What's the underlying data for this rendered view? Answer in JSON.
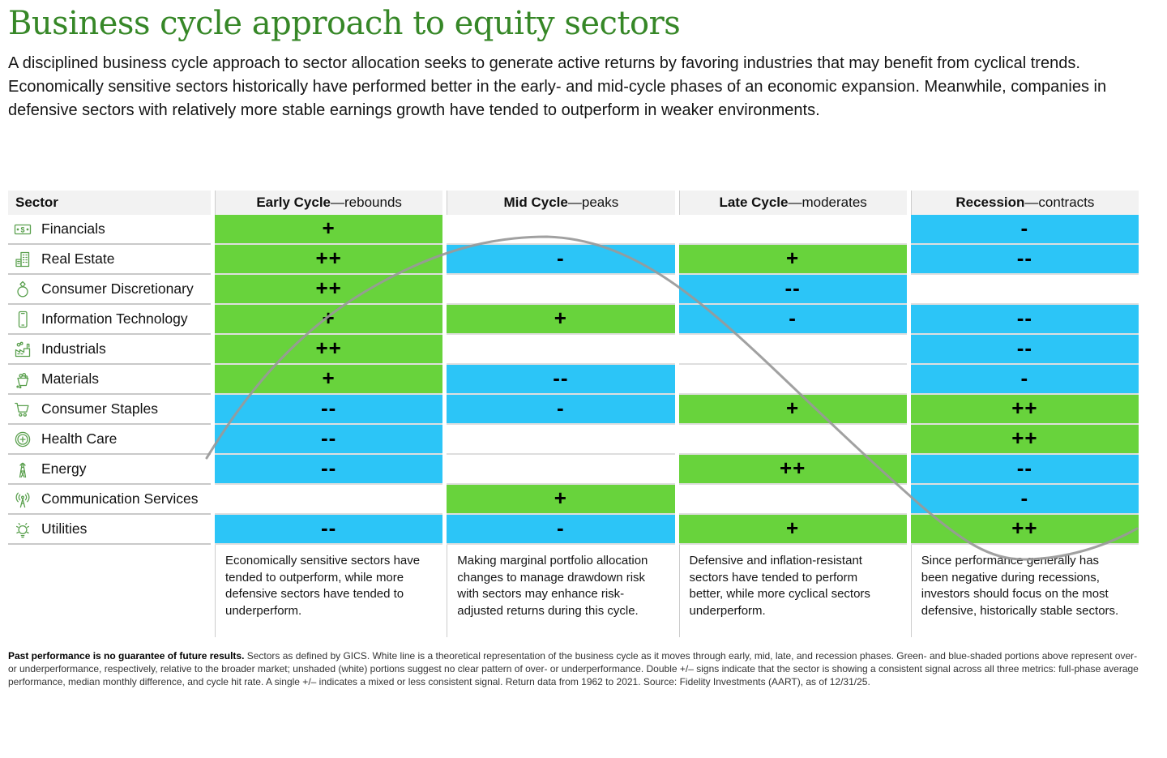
{
  "page": {
    "title": "Business cycle approach to equity sectors",
    "intro": "A disciplined business cycle approach to sector allocation seeks to generate active returns by favoring industries that may benefit from cyclical trends. Economically sensitive sectors historically have performed better in the early- and mid-cycle phases of an economic expansion. Meanwhile, companies in defensive sectors with relatively more stable earnings growth have tended to outperform in weaker environments."
  },
  "colors": {
    "title_green": "#368727",
    "icon_green": "#5aa04e",
    "cell_green": "#68d33c",
    "cell_blue": "#2cc5f7",
    "curve_gray": "#999999"
  },
  "table": {
    "sector_header": "Sector",
    "phases": [
      {
        "name": "Early Cycle",
        "tagline": "—rebounds",
        "description": "Economically sensitive sectors have tended to outperform, while more defensive sectors have tended to underperform."
      },
      {
        "name": "Mid Cycle",
        "tagline": "—peaks",
        "description": "Making marginal portfolio allocation changes to manage drawdown risk with sectors may enhance risk-adjusted returns during this cycle."
      },
      {
        "name": "Late Cycle",
        "tagline": "—moderates",
        "description": "Defensive and inflation-resistant sectors have tended to perform better, while more cyclical sectors underperform."
      },
      {
        "name": "Recession",
        "tagline": "—contracts",
        "description": "Since performance generally has been negative during recessions, investors should focus on the most defensive, historically stable sectors."
      }
    ],
    "rows": [
      {
        "sector": "Financials",
        "icon": "dollar-bill-icon",
        "cells": [
          {
            "mark": "+",
            "tone": "green"
          },
          {
            "mark": "",
            "tone": "none"
          },
          {
            "mark": "",
            "tone": "none"
          },
          {
            "mark": "-",
            "tone": "blue"
          }
        ]
      },
      {
        "sector": "Real Estate",
        "icon": "buildings-icon",
        "cells": [
          {
            "mark": "++",
            "tone": "green"
          },
          {
            "mark": "-",
            "tone": "blue"
          },
          {
            "mark": "+",
            "tone": "green"
          },
          {
            "mark": "--",
            "tone": "blue"
          }
        ]
      },
      {
        "sector": "Consumer Discretionary",
        "icon": "ring-icon",
        "cells": [
          {
            "mark": "++",
            "tone": "green"
          },
          {
            "mark": "",
            "tone": "none"
          },
          {
            "mark": "--",
            "tone": "blue"
          },
          {
            "mark": "",
            "tone": "none"
          }
        ]
      },
      {
        "sector": "Information Technology",
        "icon": "smartphone-icon",
        "cells": [
          {
            "mark": "+",
            "tone": "green"
          },
          {
            "mark": "+",
            "tone": "green"
          },
          {
            "mark": "-",
            "tone": "blue"
          },
          {
            "mark": "--",
            "tone": "blue"
          }
        ]
      },
      {
        "sector": "Industrials",
        "icon": "factory-icon",
        "cells": [
          {
            "mark": "++",
            "tone": "green"
          },
          {
            "mark": "",
            "tone": "none"
          },
          {
            "mark": "",
            "tone": "none"
          },
          {
            "mark": "--",
            "tone": "blue"
          }
        ]
      },
      {
        "sector": "Materials",
        "icon": "basket-icon",
        "cells": [
          {
            "mark": "+",
            "tone": "green"
          },
          {
            "mark": "--",
            "tone": "blue"
          },
          {
            "mark": "",
            "tone": "none"
          },
          {
            "mark": "-",
            "tone": "blue"
          }
        ]
      },
      {
        "sector": "Consumer Staples",
        "icon": "shopping-cart-icon",
        "cells": [
          {
            "mark": "--",
            "tone": "blue"
          },
          {
            "mark": "-",
            "tone": "blue"
          },
          {
            "mark": "+",
            "tone": "green"
          },
          {
            "mark": "++",
            "tone": "green"
          }
        ]
      },
      {
        "sector": "Health Care",
        "icon": "medical-cross-icon",
        "cells": [
          {
            "mark": "--",
            "tone": "blue"
          },
          {
            "mark": "",
            "tone": "none"
          },
          {
            "mark": "",
            "tone": "none"
          },
          {
            "mark": "++",
            "tone": "green"
          }
        ]
      },
      {
        "sector": "Energy",
        "icon": "transmission-tower-icon",
        "cells": [
          {
            "mark": "--",
            "tone": "blue"
          },
          {
            "mark": "",
            "tone": "none"
          },
          {
            "mark": "++",
            "tone": "green"
          },
          {
            "mark": "--",
            "tone": "blue"
          }
        ]
      },
      {
        "sector": "Communication Services",
        "icon": "antenna-icon",
        "cells": [
          {
            "mark": "",
            "tone": "none"
          },
          {
            "mark": "+",
            "tone": "green"
          },
          {
            "mark": "",
            "tone": "none"
          },
          {
            "mark": "-",
            "tone": "blue"
          }
        ]
      },
      {
        "sector": "Utilities",
        "icon": "lightbulb-icon",
        "cells": [
          {
            "mark": "--",
            "tone": "blue"
          },
          {
            "mark": "-",
            "tone": "blue"
          },
          {
            "mark": "+",
            "tone": "green"
          },
          {
            "mark": "++",
            "tone": "green"
          }
        ]
      }
    ]
  },
  "footnote": {
    "bold_lead": "Past performance is no guarantee of future results.",
    "text": " Sectors as defined by GICS. White line is a theoretical representation of the business cycle as it moves through early, mid, late, and recession phases. Green- and blue-shaded portions above represent over- or underperformance, respectively, relative to the broader market; unshaded (white) portions suggest no clear pattern of over- or underperformance. Double +/– signs indicate that the sector is showing a consistent signal across all three metrics: full-phase average performance, median monthly difference, and cycle hit rate. A single +/– indicates a mixed or less consistent signal. Return data from 1962 to 2021. Source: Fidelity Investments (AART), as of 12/31/25."
  },
  "chart_data": {
    "type": "heatmap",
    "title": "Business cycle approach to equity sectors",
    "columns": [
      "Early Cycle—rebounds",
      "Mid Cycle—peaks",
      "Late Cycle—moderates",
      "Recession—contracts"
    ],
    "rows": [
      "Financials",
      "Real Estate",
      "Consumer Discretionary",
      "Information Technology",
      "Industrials",
      "Materials",
      "Consumer Staples",
      "Health Care",
      "Energy",
      "Communication Services",
      "Utilities"
    ],
    "values": [
      [
        "+",
        "",
        "",
        "-"
      ],
      [
        "++",
        "-",
        "+",
        "--"
      ],
      [
        "++",
        "",
        "--",
        ""
      ],
      [
        "+",
        "+",
        "-",
        "--"
      ],
      [
        "++",
        "",
        "",
        "--"
      ],
      [
        "+",
        "--",
        "",
        "-"
      ],
      [
        "--",
        "-",
        "+",
        "++"
      ],
      [
        "--",
        "",
        "",
        "++"
      ],
      [
        "--",
        "",
        "++",
        "--"
      ],
      [
        "",
        "+",
        "",
        "-"
      ],
      [
        "--",
        "-",
        "+",
        "++"
      ]
    ],
    "legend": {
      "green": "overperformance vs. broader market",
      "blue": "underperformance vs. broader market",
      "white": "no clear pattern of over- or underperformance"
    },
    "overlay": "gray sine-shaped business cycle curve rising through early cycle, peaking in mid cycle, declining through late cycle, troughing in recession"
  }
}
